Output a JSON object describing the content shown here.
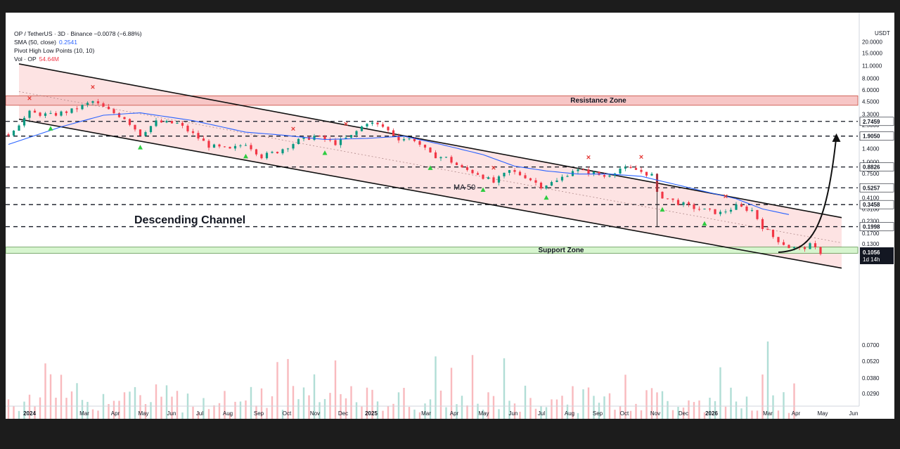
{
  "legend": {
    "line1": "OP / TetherUS · 3D · Binance −0.0078 (−6.88%)",
    "sma_label": "SMA (50, close)",
    "sma_value": "0.2541",
    "pivot_label": "Pivot High Low Points (10, 10)",
    "vol_label": "Vol · OP",
    "vol_value": "54.64M"
  },
  "axis_unit": "USDT",
  "chart_data": {
    "type": "candlestick",
    "title": "OP / TetherUS · 3D · Binance",
    "y_scale": "log",
    "y_ticks": [
      20.0,
      15.0,
      11.0,
      8.0,
      6.0,
      4.5,
      3.3,
      2.5,
      1.4,
      1.0,
      0.75,
      0.55,
      0.41,
      0.31,
      0.23,
      0.17,
      0.13,
      0.07,
      0.052,
      0.038,
      0.029
    ],
    "y_tick_labels": [
      "20.0000",
      "15.0000",
      "11.0000",
      "8.0000",
      "6.0000",
      "4.5000",
      "3.3000",
      "2.5000",
      "1.4000",
      "1.0000",
      "0.7500",
      "0.5500",
      "0.4100",
      "0.3100",
      "0.2300",
      "0.1700",
      "0.1300",
      "0.0700",
      "0.0520",
      "0.0380",
      "0.0290"
    ],
    "x_ticks": [
      "2024",
      "Mar",
      "Apr",
      "May",
      "Jun",
      "Jul",
      "Aug",
      "Sep",
      "Oct",
      "Nov",
      "Dec",
      "2025",
      "Mar",
      "Apr",
      "May",
      "Jun",
      "Jul",
      "Aug",
      "Sep",
      "Oct",
      "Nov",
      "Dec",
      "2026",
      "Mar",
      "Apr",
      "May",
      "Jun"
    ],
    "horizontal_levels": [
      2.7459,
      1.905,
      0.8826,
      0.5257,
      0.3458,
      0.1998
    ],
    "level_labels": [
      "2.7459",
      "1.9050",
      "0.8826",
      "0.5257",
      "0.3458",
      "0.1998"
    ],
    "current_price": "0.1056",
    "countdown": "1d 14h",
    "price_path": [
      [
        0,
        2.0
      ],
      [
        4,
        3.4
      ],
      [
        8,
        3.2
      ],
      [
        12,
        3.6
      ],
      [
        16,
        4.5
      ],
      [
        19,
        3.6
      ],
      [
        22,
        3.0
      ],
      [
        25,
        2.0
      ],
      [
        28,
        2.7
      ],
      [
        32,
        2.6
      ],
      [
        35,
        2.0
      ],
      [
        38,
        1.5
      ],
      [
        42,
        1.35
      ],
      [
        45,
        1.6
      ],
      [
        48,
        1.15
      ],
      [
        51,
        1.3
      ],
      [
        55,
        1.7
      ],
      [
        58,
        1.9
      ],
      [
        62,
        1.6
      ],
      [
        65,
        1.9
      ],
      [
        68,
        2.7
      ],
      [
        71,
        2.4
      ],
      [
        74,
        1.8
      ],
      [
        77,
        1.75
      ],
      [
        80,
        1.2
      ],
      [
        83,
        1.1
      ],
      [
        86,
        0.85
      ],
      [
        89,
        0.75
      ],
      [
        92,
        0.6
      ],
      [
        95,
        0.8
      ],
      [
        98,
        0.7
      ],
      [
        101,
        0.55
      ],
      [
        104,
        0.62
      ],
      [
        107,
        0.82
      ],
      [
        110,
        0.78
      ],
      [
        113,
        0.7
      ],
      [
        116,
        0.85
      ],
      [
        119,
        0.82
      ],
      [
        122,
        0.72
      ],
      [
        123,
        0.45
      ],
      [
        126,
        0.38
      ],
      [
        129,
        0.33
      ],
      [
        132,
        0.3
      ],
      [
        135,
        0.28
      ],
      [
        138,
        0.33
      ],
      [
        141,
        0.3
      ],
      [
        143,
        0.2
      ],
      [
        145,
        0.155
      ],
      [
        148,
        0.12
      ],
      [
        150,
        0.115
      ],
      [
        152,
        0.125
      ],
      [
        154,
        0.1056
      ]
    ],
    "sma50_path": [
      [
        0,
        1.55
      ],
      [
        10,
        2.4
      ],
      [
        18,
        3.2
      ],
      [
        25,
        3.4
      ],
      [
        35,
        2.8
      ],
      [
        45,
        2.1
      ],
      [
        52,
        1.95
      ],
      [
        60,
        1.75
      ],
      [
        68,
        1.8
      ],
      [
        75,
        1.9
      ],
      [
        82,
        1.55
      ],
      [
        90,
        1.2
      ],
      [
        96,
        0.9
      ],
      [
        102,
        0.8
      ],
      [
        108,
        0.74
      ],
      [
        114,
        0.74
      ],
      [
        120,
        0.7
      ],
      [
        126,
        0.58
      ],
      [
        132,
        0.48
      ],
      [
        138,
        0.4
      ],
      [
        143,
        0.31
      ],
      [
        148,
        0.27
      ]
    ],
    "channel_upper": [
      [
        2,
        11.5
      ],
      [
        152,
        0.29
      ]
    ],
    "channel_lower": [
      [
        2,
        2.9
      ],
      [
        152,
        0.082
      ]
    ],
    "projection": [
      [
        146,
        0.1056
      ],
      [
        149,
        0.11
      ],
      [
        152,
        0.17
      ],
      [
        155,
        0.55
      ],
      [
        157,
        1.9
      ]
    ],
    "resistance_zone": [
      4.1,
      5.2
    ],
    "support_zone": [
      0.103,
      0.12
    ],
    "pivot_highs_idx": [
      4,
      16,
      64,
      54,
      92,
      110,
      120,
      136
    ],
    "pivot_lows_idx": [
      8,
      25,
      45,
      60,
      80,
      90,
      102,
      124,
      132
    ],
    "annotations": {
      "channel": "Descending Channel",
      "resistance": "Resistance Zone",
      "support": "Support Zone",
      "ma": "MA 50"
    },
    "colors": {
      "up": "#089981",
      "down": "#f23645",
      "sma": "#2962ff",
      "channel_fill": "#fde0e0",
      "resistance_fill": "#f7c6c6",
      "support_fill": "#d7f5cf",
      "level": "#131722"
    }
  }
}
